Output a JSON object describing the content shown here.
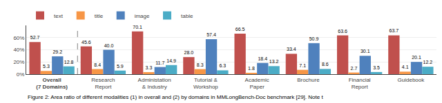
{
  "chart_data": {
    "type": "bar",
    "categories": [
      "Overall\n(7 Domains)",
      "Research\nReport",
      "Administation\n& Industry",
      "Tutorial &\nWorkshop",
      "Academic\nPaper",
      "Brochure",
      "Financial\nReport",
      "Guidebook"
    ],
    "series": [
      {
        "name": "text",
        "color": "#c0504d",
        "values": [
          52.7,
          45.6,
          70.1,
          28.0,
          66.5,
          33.4,
          63.6,
          63.7
        ],
        "value_labels": [
          "52.7",
          "45.6",
          "70.1",
          "28.0",
          "66.5",
          "33.4",
          "63.6",
          "63.7"
        ]
      },
      {
        "name": "title",
        "color": "#f79646",
        "values": [
          5.3,
          8.4,
          3.3,
          8.3,
          1.8,
          7.1,
          2.7,
          4.1
        ]
      },
      {
        "name": "image",
        "color": "#4f81bd",
        "values": [
          29.2,
          40.0,
          11.7,
          57.4,
          18.4,
          50.9,
          30.1,
          20.1
        ],
        "value_labels": [
          "29.2",
          "40.0",
          "11.7",
          "57.4",
          "18.4",
          "50.9",
          "30.1",
          "20.1"
        ]
      },
      {
        "name": "table",
        "color": "#4bacc6",
        "values": [
          12.8,
          5.9,
          14.9,
          6.3,
          13.2,
          8.6,
          3.5,
          12.2
        ]
      }
    ],
    "ylim": [
      0,
      80
    ],
    "yticks": [
      {
        "value": 0,
        "label": "0%"
      },
      {
        "value": 20,
        "label": "20%"
      },
      {
        "value": 40,
        "label": "40%"
      },
      {
        "value": 60,
        "label": "60%"
      }
    ],
    "grid": true,
    "legend": "upper left",
    "data_labels": true,
    "caption": "Figure 2: Area ratio of different modalities (1) in overall and (2) by domains in MMLongBench-Doc benchmark [29]. Note t"
  }
}
